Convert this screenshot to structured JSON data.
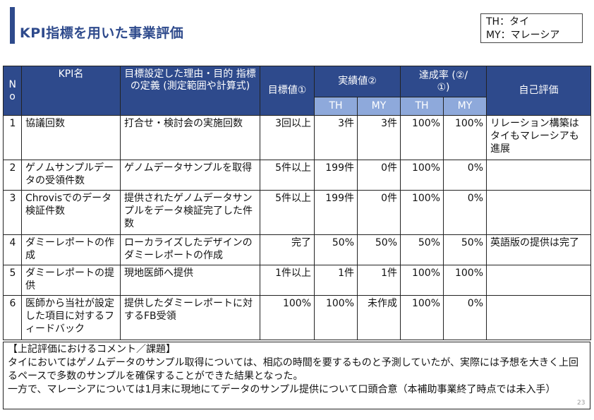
{
  "title": "KPI指標を用いた事業評価",
  "legend": [
    "TH：タイ",
    "MY：マレーシア"
  ],
  "table": {
    "headers": {
      "no": "No",
      "kpi": "KPI名",
      "reason": "目標設定した理由・目的 指標の定義 (測定範囲や計算式)",
      "target": "目標値①",
      "actual": "実績値②",
      "achieve": "達成率 (②/①)",
      "self": "自己評価",
      "th": "TH",
      "my": "MY"
    },
    "rows": [
      {
        "no": "1",
        "kpi": "協議回数",
        "reason": "打合せ・検討会の実施回数",
        "target": "3回以上",
        "actual_th": "3件",
        "actual_my": "3件",
        "rate_th": "100%",
        "rate_my": "100%",
        "self": "リレーション構築はタイもマレーシアも進展"
      },
      {
        "no": "2",
        "kpi": "ゲノムサンプルデータの受領件数",
        "reason": "ゲノムデータサンプルを取得",
        "target": "5件以上",
        "actual_th": "199件",
        "actual_my": "0件",
        "rate_th": "100%",
        "rate_my": "0%",
        "self": ""
      },
      {
        "no": "3",
        "kpi": "Chrovisでのデータ検証件数",
        "reason": "提供されたゲノムデータサンプルをデータ検証完了した件数",
        "target": "5件以上",
        "actual_th": "199件",
        "actual_my": "0件",
        "rate_th": "100%",
        "rate_my": "0%",
        "self": ""
      },
      {
        "no": "4",
        "kpi": "ダミーレポートの作成",
        "reason": "ローカライズしたデザインのダミーレポートの作成",
        "target": "完了",
        "actual_th": "50%",
        "actual_my": "50%",
        "rate_th": "50%",
        "rate_my": "50%",
        "self": "英語版の提供は完了"
      },
      {
        "no": "5",
        "kpi": "ダミーレポートの提供",
        "reason": "現地医師へ提供",
        "target": "1件以上",
        "actual_th": "1件",
        "actual_my": "1件",
        "rate_th": "100%",
        "rate_my": "100%",
        "self": ""
      },
      {
        "no": "6",
        "kpi": "医師から当社が設定した項目に対するフィードバック",
        "reason": "提供したダミーレポートに対するFB受領",
        "target": "100%",
        "actual_th": "100%",
        "actual_my": "未作成",
        "rate_th": "100%",
        "rate_my": "0%",
        "self": ""
      }
    ]
  },
  "comment": {
    "heading": "【上記評価におけるコメント／課題】",
    "para1": "タイにおいてはゲノムデータのサンプル取得については、相応の時間を要するものと予測していたが、実際には予想を大きく上回るペースで多数のサンプルを確保することができた結果となった。",
    "para2": "一方で、マレーシアについては1月末に現地にてデータのサンプル提供について口頭合意（本補助事業終了時点では未入手）"
  },
  "page_number": "23",
  "colors": {
    "accent": "#2e4a8c",
    "header_bg": "#2e4a8c",
    "subheader_bg": "#8ea9db"
  }
}
